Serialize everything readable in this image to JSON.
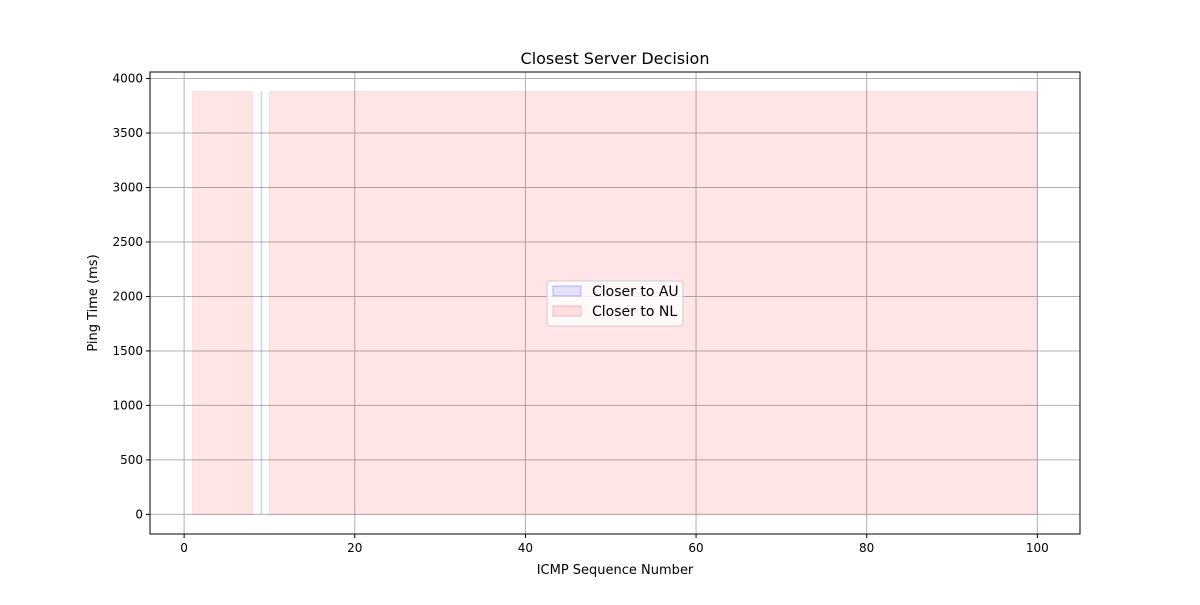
{
  "chart_data": {
    "type": "area",
    "title": "Closest Server Decision",
    "xlabel": "ICMP Sequence Number",
    "ylabel": "Ping Time (ms)",
    "xlim": [
      -4,
      105
    ],
    "ylim": [
      -180,
      4060
    ],
    "xticks": [
      0,
      20,
      40,
      60,
      80,
      100
    ],
    "yticks": [
      0,
      500,
      1000,
      1500,
      2000,
      2500,
      3000,
      3500,
      4000
    ],
    "grid": true,
    "legend_position": "center",
    "series": [
      {
        "name": "Closer to AU",
        "color": "#0000ff",
        "alpha": 0.1,
        "regions": [
          {
            "x_start": 9,
            "x_end": 9,
            "y_low": 0,
            "y_high": 3880
          }
        ]
      },
      {
        "name": "Closer to NL",
        "color": "#ff0000",
        "alpha": 0.1,
        "regions": [
          {
            "x_start": 1,
            "x_end": 8,
            "y_low": 0,
            "y_high": 3880
          },
          {
            "x_start": 10,
            "x_end": 100,
            "y_low": 0,
            "y_high": 3880
          }
        ]
      }
    ]
  }
}
